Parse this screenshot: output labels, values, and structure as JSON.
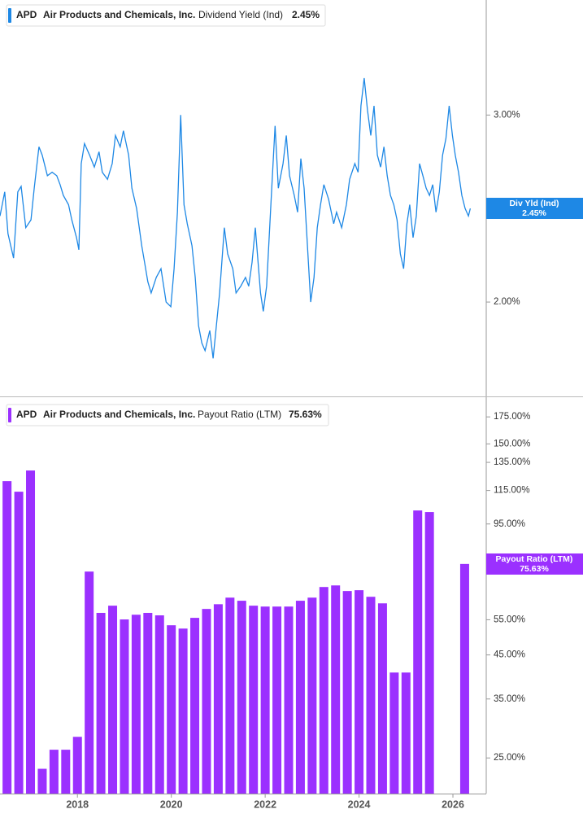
{
  "chart_data": [
    {
      "type": "line",
      "log_scale": true,
      "legend": {
        "ticker": "APD",
        "company": "Air Products and Chemicals, Inc.",
        "metric": "Dividend Yield (Ind)",
        "value": "2.45%"
      },
      "flag": {
        "label": "Div Yld (Ind)",
        "value": "2.45%"
      },
      "xlim": [
        2016.35,
        2026.71
      ],
      "ylim": [
        1.63,
        3.85
      ],
      "yticks": [
        {
          "value": 2,
          "label": "2.00%"
        },
        {
          "value": 3,
          "label": "3.00%"
        }
      ],
      "x": [
        2016.35,
        2016.45,
        2016.52,
        2016.64,
        2016.73,
        2016.8,
        2016.9,
        2017.01,
        2017.08,
        2017.18,
        2017.25,
        2017.36,
        2017.46,
        2017.56,
        2017.63,
        2017.7,
        2017.81,
        2017.88,
        2017.98,
        2018.03,
        2018.08,
        2018.15,
        2018.26,
        2018.36,
        2018.46,
        2018.53,
        2018.64,
        2018.74,
        2018.81,
        2018.91,
        2018.98,
        2019.09,
        2019.16,
        2019.26,
        2019.37,
        2019.43,
        2019.5,
        2019.57,
        2019.68,
        2019.78,
        2019.89,
        2019.99,
        2020.06,
        2020.13,
        2020.2,
        2020.27,
        2020.34,
        2020.44,
        2020.51,
        2020.58,
        2020.65,
        2020.72,
        2020.82,
        2020.89,
        2020.96,
        2021.03,
        2021.13,
        2021.2,
        2021.31,
        2021.38,
        2021.48,
        2021.58,
        2021.65,
        2021.72,
        2021.79,
        2021.9,
        2021.96,
        2022.03,
        2022.14,
        2022.21,
        2022.28,
        2022.38,
        2022.45,
        2022.52,
        2022.62,
        2022.69,
        2022.76,
        2022.83,
        2022.9,
        2022.97,
        2023.04,
        2023.11,
        2023.18,
        2023.25,
        2023.35,
        2023.46,
        2023.52,
        2023.63,
        2023.73,
        2023.8,
        2023.91,
        2023.98,
        2024.04,
        2024.11,
        2024.18,
        2024.25,
        2024.32,
        2024.39,
        2024.46,
        2024.53,
        2024.6,
        2024.67,
        2024.74,
        2024.81,
        2024.88,
        2024.95,
        2025.02,
        2025.08,
        2025.15,
        2025.22,
        2025.29,
        2025.36,
        2025.43,
        2025.5,
        2025.57,
        2025.64,
        2025.71,
        2025.78,
        2025.85,
        2025.92,
        2025.99,
        2026.05,
        2026.12,
        2026.19,
        2026.26,
        2026.33,
        2026.37
      ],
      "series": [
        {
          "name": "Dividend Yield (Ind)",
          "color": "#1e88e5",
          "values": [
            2.41,
            2.54,
            2.32,
            2.2,
            2.54,
            2.57,
            2.35,
            2.39,
            2.56,
            2.8,
            2.75,
            2.63,
            2.65,
            2.63,
            2.58,
            2.52,
            2.47,
            2.39,
            2.3,
            2.24,
            2.7,
            2.82,
            2.75,
            2.68,
            2.77,
            2.65,
            2.61,
            2.7,
            2.87,
            2.8,
            2.9,
            2.75,
            2.56,
            2.45,
            2.26,
            2.18,
            2.09,
            2.04,
            2.11,
            2.15,
            2.0,
            1.98,
            2.15,
            2.43,
            3.0,
            2.47,
            2.37,
            2.26,
            2.11,
            1.9,
            1.83,
            1.8,
            1.88,
            1.77,
            1.9,
            2.04,
            2.35,
            2.22,
            2.15,
            2.04,
            2.07,
            2.11,
            2.07,
            2.18,
            2.35,
            2.04,
            1.96,
            2.07,
            2.56,
            2.93,
            2.56,
            2.7,
            2.87,
            2.63,
            2.52,
            2.43,
            2.73,
            2.56,
            2.26,
            2.0,
            2.11,
            2.35,
            2.47,
            2.58,
            2.5,
            2.37,
            2.43,
            2.35,
            2.47,
            2.61,
            2.7,
            2.65,
            3.06,
            3.25,
            3.03,
            2.87,
            3.06,
            2.75,
            2.68,
            2.8,
            2.63,
            2.52,
            2.47,
            2.39,
            2.22,
            2.15,
            2.37,
            2.47,
            2.3,
            2.41,
            2.7,
            2.63,
            2.56,
            2.52,
            2.58,
            2.43,
            2.54,
            2.75,
            2.85,
            3.06,
            2.87,
            2.75,
            2.65,
            2.52,
            2.45,
            2.41,
            2.45
          ]
        }
      ]
    },
    {
      "type": "bar",
      "log_scale": true,
      "legend": {
        "ticker": "APD",
        "company": "Air Products and Chemicals, Inc.",
        "metric": "Payout Ratio (LTM)",
        "value": "75.63%"
      },
      "flag": {
        "label": "Payout Ratio (LTM)",
        "value": "75.63%"
      },
      "xlim": [
        2016.35,
        2026.71
      ],
      "ylim": [
        20.4,
        194
      ],
      "yticks": [
        {
          "value": 25,
          "label": "25.00%"
        },
        {
          "value": 35,
          "label": "35.00%"
        },
        {
          "value": 45,
          "label": "45.00%"
        },
        {
          "value": 55,
          "label": "55.00%"
        },
        {
          "value": 95,
          "label": "95.00%"
        },
        {
          "value": 115,
          "label": "115.00%"
        },
        {
          "value": 135,
          "label": "135.00%"
        },
        {
          "value": 150,
          "label": "150.00%"
        },
        {
          "value": 175,
          "label": "175.00%"
        }
      ],
      "xticks": [
        2018,
        2020,
        2022,
        2024,
        2026
      ],
      "x": [
        2016.5,
        2016.75,
        2017,
        2017.25,
        2017.5,
        2017.75,
        2018,
        2018.25,
        2018.5,
        2018.75,
        2019,
        2019.25,
        2019.5,
        2019.75,
        2020,
        2020.25,
        2020.5,
        2020.75,
        2021,
        2021.25,
        2021.5,
        2021.75,
        2022,
        2022.25,
        2022.5,
        2022.75,
        2023,
        2023.25,
        2023.5,
        2023.75,
        2024,
        2024.25,
        2024.5,
        2024.75,
        2025,
        2025.25,
        2025.5,
        2025.75,
        2026,
        2026.25
      ],
      "series": [
        {
          "name": "Payout Ratio (LTM)",
          "color": "#9b30ff",
          "values": [
            121.3,
            114.2,
            128.9,
            23.5,
            26.2,
            26.2,
            28.2,
            72.4,
            57.2,
            59.6,
            55.1,
            56.6,
            57.2,
            56.4,
            53.3,
            52.3,
            55.6,
            58.5,
            60.1,
            62.4,
            61.3,
            59.6,
            59.3,
            59.3,
            59.3,
            61.3,
            62.4,
            66.3,
            66.9,
            64.8,
            65.1,
            62.7,
            60.4,
            40.7,
            40.7,
            102.6,
            101.7,
            null,
            null,
            75.63
          ]
        }
      ]
    }
  ]
}
